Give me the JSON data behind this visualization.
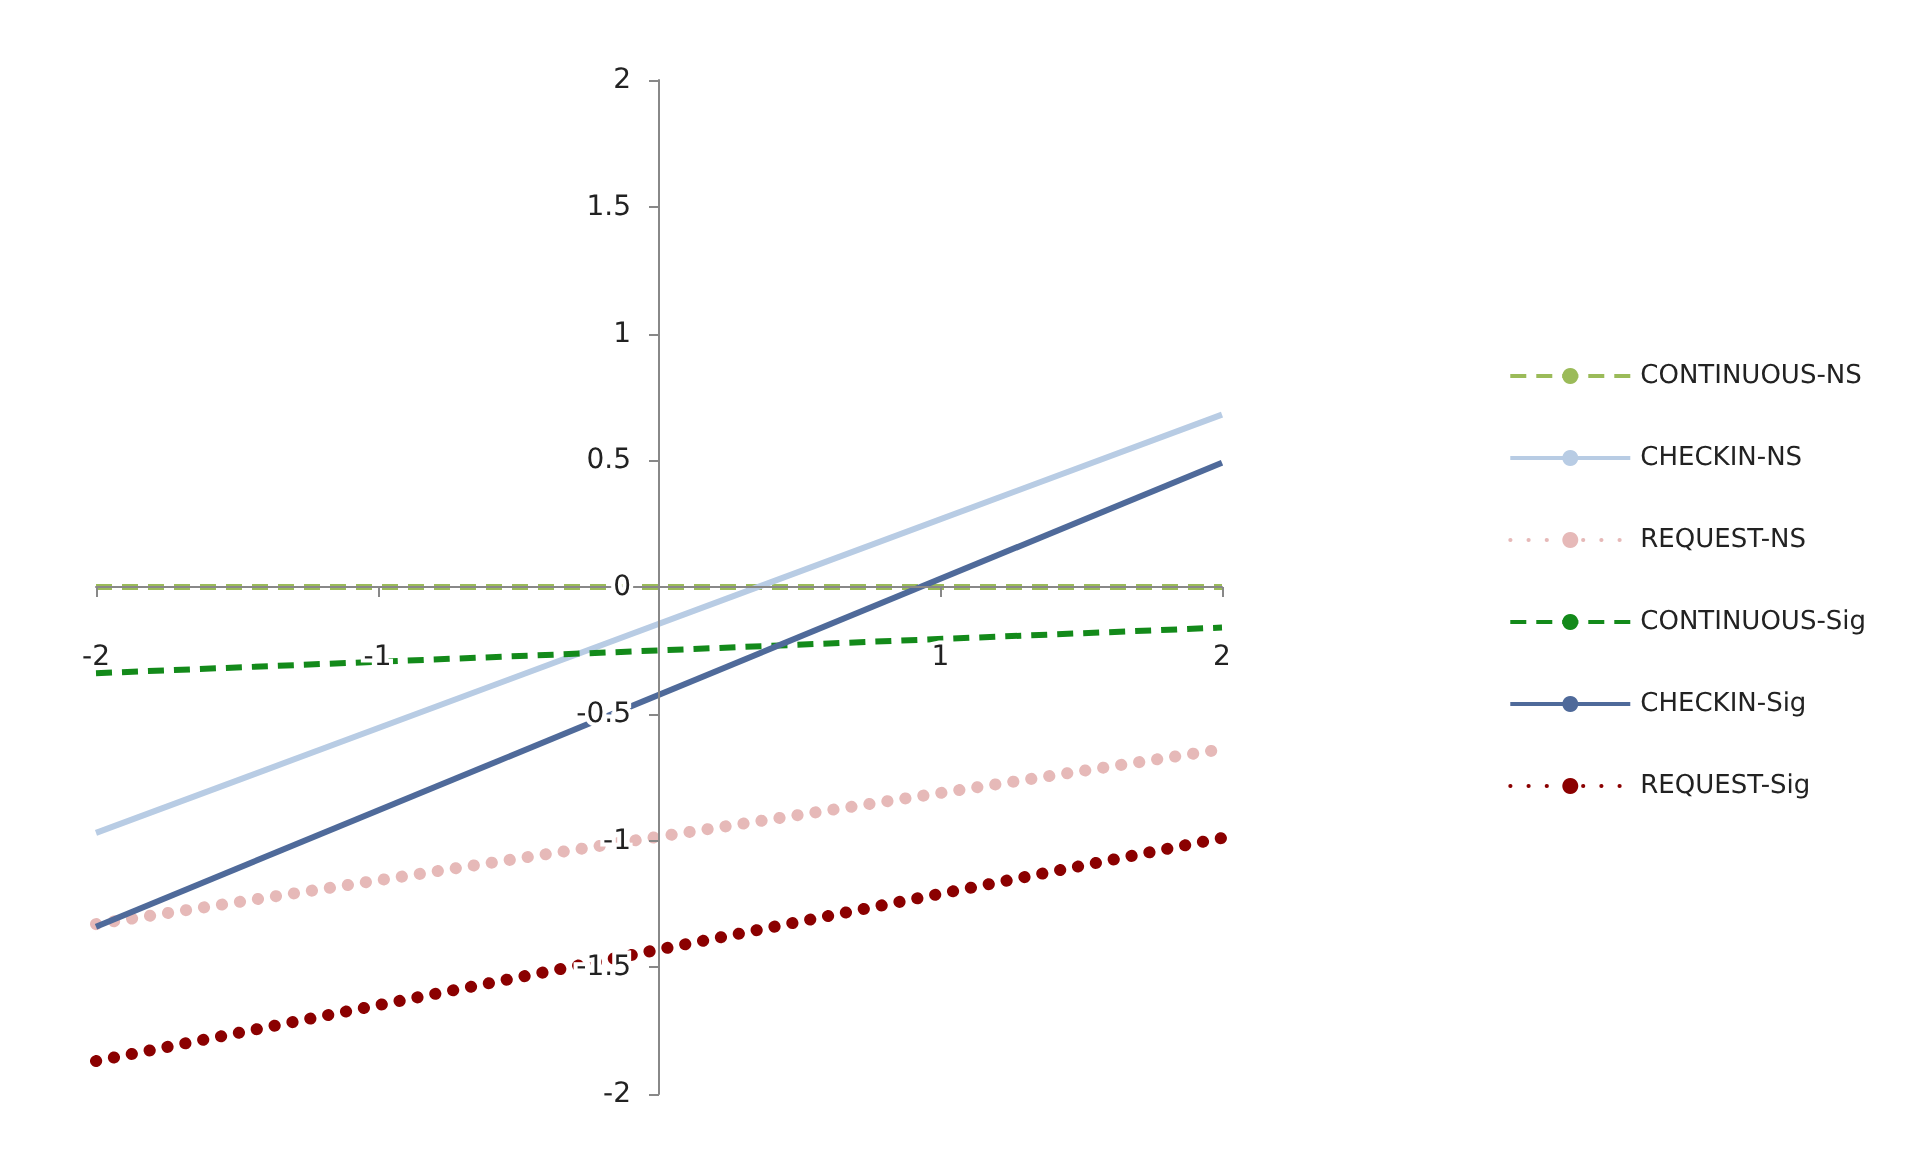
{
  "chart_data": {
    "type": "line",
    "x": [
      -2,
      2
    ],
    "xlim": [
      -2,
      2
    ],
    "xticks": [
      -2,
      -1,
      {
        "value": 0,
        "label": null
      },
      1,
      2
    ],
    "ylim": [
      -2,
      2
    ],
    "yticks": [
      -2,
      -1.5,
      -1,
      -0.5,
      0,
      0.5,
      1,
      1.5,
      2
    ],
    "legend": "right",
    "marker": "none",
    "series": [
      {
        "name": "CONTINUOUS-NS",
        "color": "#9bbb59",
        "line_style": "dashed",
        "values": [
          0,
          0
        ]
      },
      {
        "name": "CHECKIN-NS",
        "color": "#b8cce4",
        "line_style": "solid",
        "values": [
          -0.97,
          0.68
        ]
      },
      {
        "name": "REQUEST-NS",
        "color": "#e6b9b8",
        "line_style": "dotted",
        "values": [
          -1.33,
          -0.64
        ]
      },
      {
        "name": "CONTINUOUS-Sig",
        "color": "#138a1a",
        "line_style": "dashed",
        "values": [
          -0.34,
          -0.16
        ]
      },
      {
        "name": "CHECKIN-Sig",
        "color": "#4f6a9a",
        "line_style": "solid",
        "values": [
          -1.34,
          0.49
        ]
      },
      {
        "name": "REQUEST-Sig",
        "color": "#8b0000",
        "line_style": "dotted",
        "values": [
          -1.87,
          -0.99
        ]
      }
    ]
  }
}
